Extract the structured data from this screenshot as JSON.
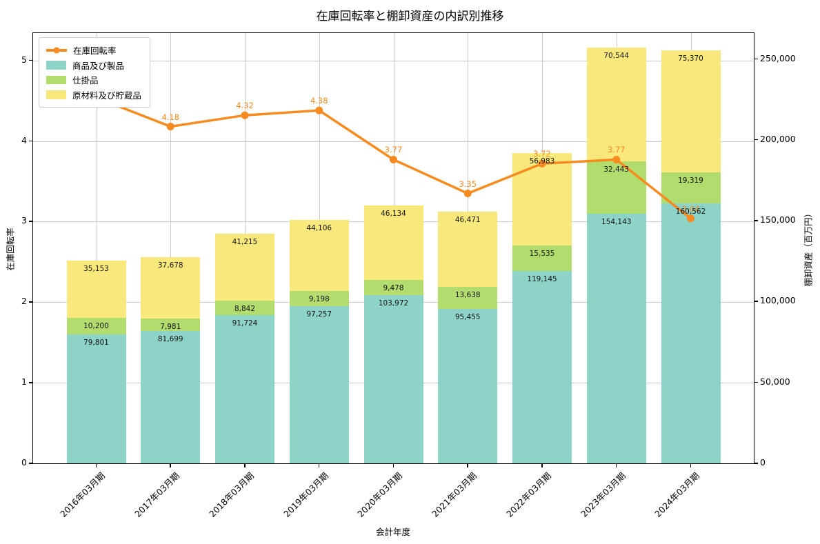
{
  "title": "在庫回転率と棚卸資産の内訳別推移",
  "colors": {
    "line_orange": "#f78b1f",
    "bar_teal": "#8ed3c7",
    "bar_green": "#b3dc6e",
    "bar_yellow": "#f9e97d",
    "grid": "#c9c9c9"
  },
  "chart_data": {
    "type": "bar",
    "subtype": "stacked-bar-with-line",
    "title": "在庫回転率と棚卸資産の内訳別推移",
    "xlabel": "会計年度",
    "ylabel_left": "在庫回転率",
    "ylabel_right": "棚卸資産（百万円）",
    "categories": [
      "2016年03月期",
      "2017年03月期",
      "2018年03月期",
      "2019年03月期",
      "2020年03月期",
      "2021年03月期",
      "2022年03月期",
      "2023年03月期",
      "2024年03月期"
    ],
    "series": [
      {
        "name": "商品及び製品",
        "color": "#8ed3c7",
        "axis": "right",
        "values": [
          79801,
          81699,
          91724,
          97257,
          103972,
          95455,
          119145,
          154143,
          160562
        ]
      },
      {
        "name": "仕掛品",
        "color": "#b3dc6e",
        "axis": "right",
        "values": [
          10200,
          7981,
          8842,
          9198,
          9478,
          13638,
          15535,
          32443,
          19319
        ]
      },
      {
        "name": "原材料及び貯蔵品",
        "color": "#f9e97d",
        "axis": "right",
        "values": [
          35153,
          37678,
          41215,
          44106,
          46134,
          46471,
          56983,
          70544,
          75370
        ]
      }
    ],
    "line_series": {
      "name": "在庫回転率",
      "color": "#f78b1f",
      "axis": "left",
      "values": [
        4.54,
        4.18,
        4.32,
        4.38,
        3.77,
        3.35,
        3.72,
        3.77,
        3.04
      ]
    },
    "legend_order": [
      "在庫回転率",
      "商品及び製品",
      "仕掛品",
      "原材料及び貯蔵品"
    ],
    "legend_position": "upper left",
    "grid": true,
    "ylim_left": [
      0,
      5.34
    ],
    "ylim_right": [
      0,
      266000
    ],
    "yticks_left": [
      0,
      1,
      2,
      3,
      4,
      5
    ],
    "yticks_right": [
      0,
      50000,
      100000,
      150000,
      200000,
      250000
    ]
  }
}
